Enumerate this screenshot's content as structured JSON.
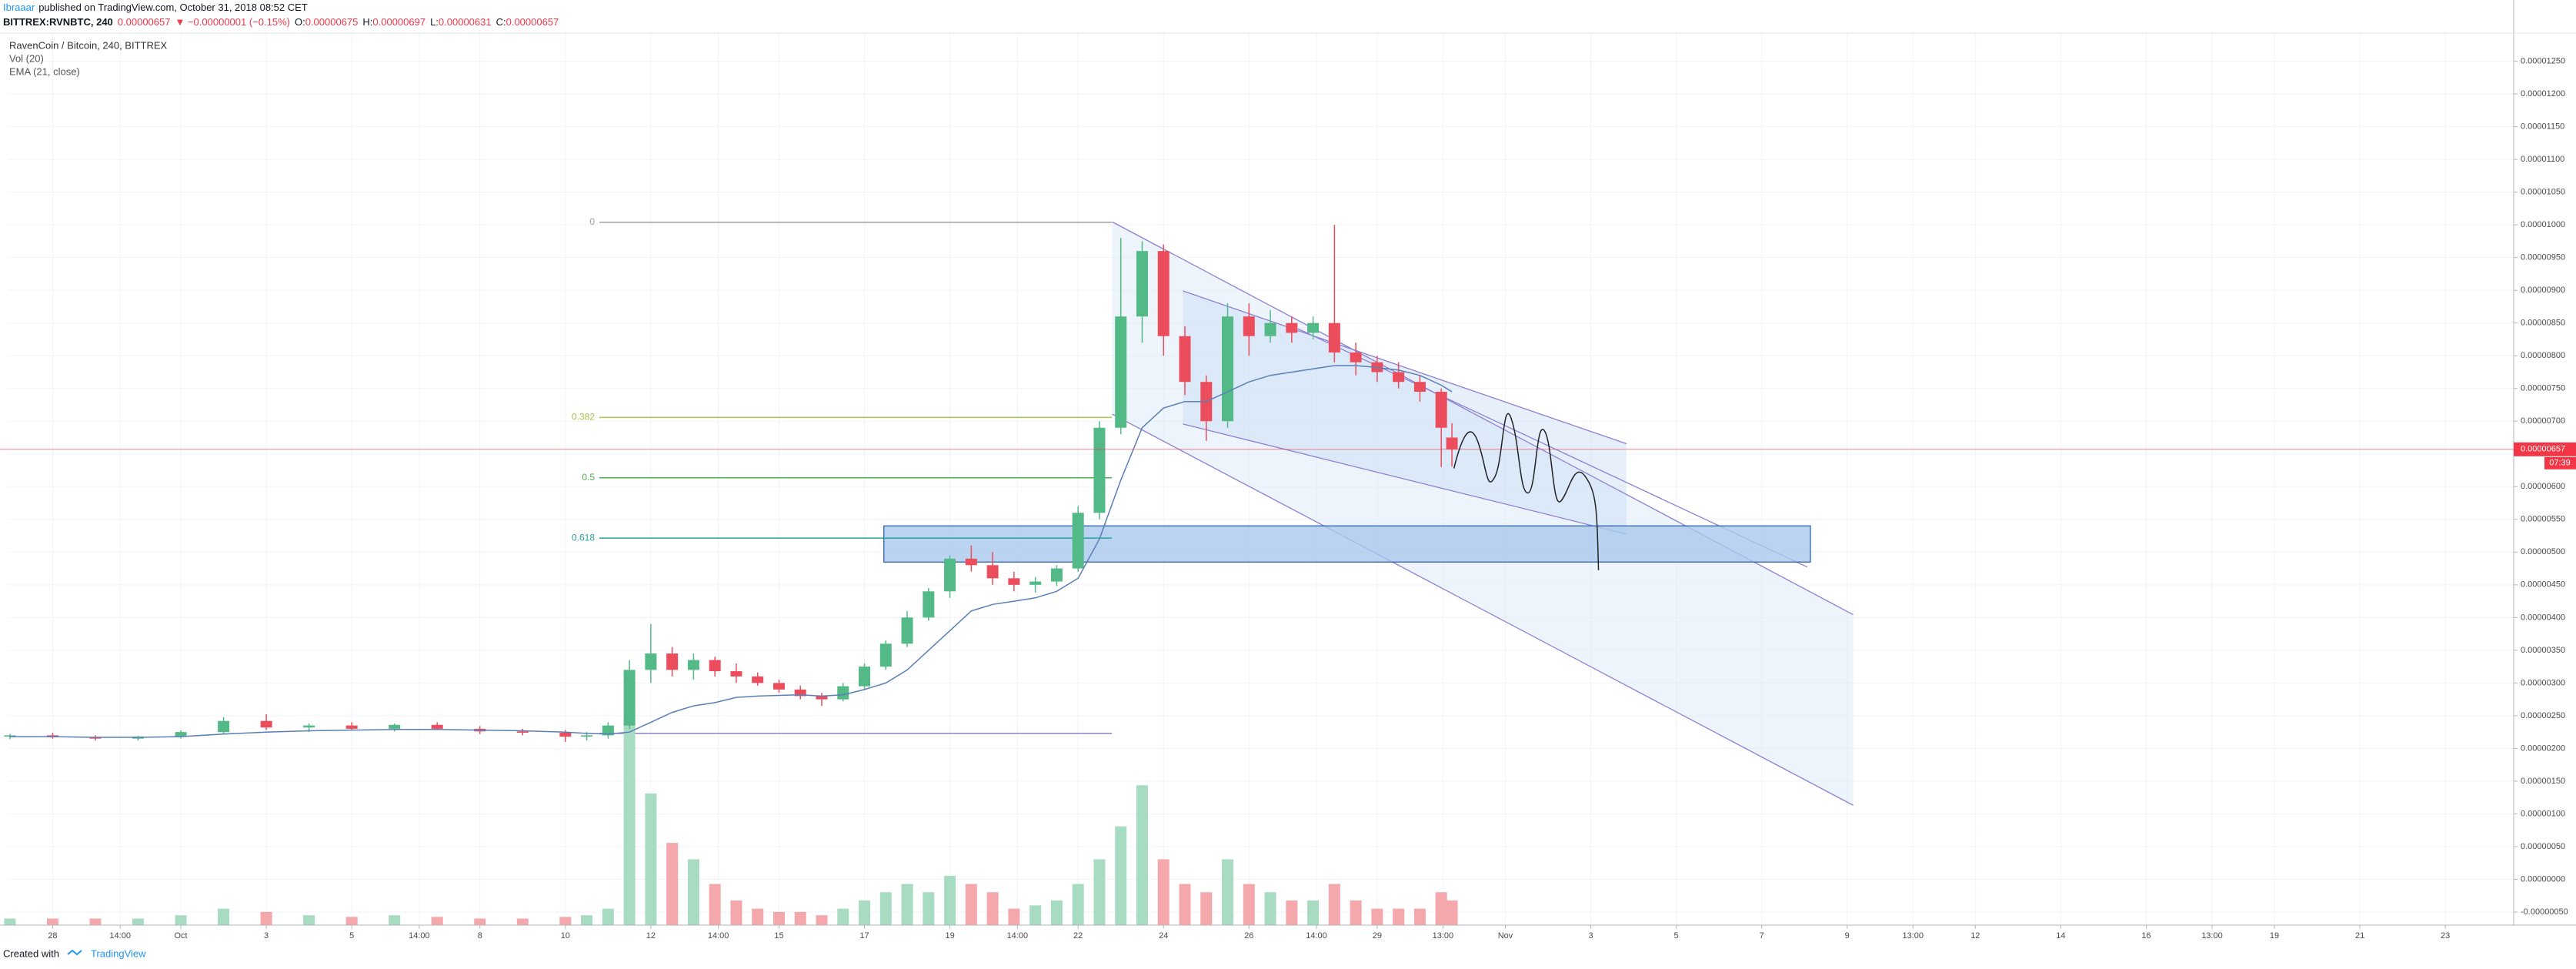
{
  "header": {
    "author": "Ibraaar",
    "published": "published on TradingView.com, October 31, 2018 08:52 CET",
    "symbol": "BITTREX:RVNBTC, 240",
    "price": "0.00000657",
    "change": "▼ −0.00000001 (−0.15%)",
    "ohlc": [
      {
        "key": "O:",
        "value": "0.00000675"
      },
      {
        "key": "H:",
        "value": "0.00000697"
      },
      {
        "key": "L:",
        "value": "0.00000631"
      },
      {
        "key": "C:",
        "value": "0.00000657"
      }
    ]
  },
  "footer": {
    "created": "Created with",
    "brand": "TradingView"
  },
  "chart_data": {
    "type": "candlestick",
    "title": "RavenCoin / Bitcoin, 240, BITTREX",
    "indicators": [
      "Vol (20)",
      "EMA (21, close)"
    ],
    "x": [
      -4,
      -3,
      -2,
      -1,
      0,
      1,
      2,
      3,
      4,
      5,
      6,
      7,
      8,
      9,
      9.5,
      10,
      10.5,
      11,
      11.5,
      12,
      12.5,
      13,
      13.5,
      14,
      14.5,
      15,
      15.5,
      16,
      16.5,
      17,
      17.5,
      18,
      18.5,
      19,
      19.5,
      20,
      20.5,
      21,
      21.5,
      22,
      22.5,
      23,
      23.5,
      24,
      24.5,
      25,
      25.5,
      26,
      26.5,
      27,
      27.5,
      28,
      28.5,
      29,
      29.5,
      29.75
    ],
    "open": [
      2.18e-06,
      2.2e-06,
      2.17e-06,
      2.15e-06,
      2.18e-06,
      2.25e-06,
      2.42e-06,
      2.32e-06,
      2.35e-06,
      2.3e-06,
      2.36e-06,
      2.3e-06,
      2.26e-06,
      2.24e-06,
      2.18e-06,
      2.2e-06,
      2.35e-06,
      3.2e-06,
      3.45e-06,
      3.2e-06,
      3.35e-06,
      3.18e-06,
      3.1e-06,
      3e-06,
      2.9e-06,
      2.8e-06,
      2.75e-06,
      2.95e-06,
      3.25e-06,
      3.6e-06,
      4e-06,
      4.4e-06,
      4.9e-06,
      4.8e-06,
      4.6e-06,
      4.5e-06,
      4.55e-06,
      4.75e-06,
      5.6e-06,
      6.9e-06,
      8.6e-06,
      9.6e-06,
      8.3e-06,
      7.6e-06,
      7e-06,
      8.6e-06,
      8.3e-06,
      8.5e-06,
      8.35e-06,
      8.5e-06,
      8.05e-06,
      7.9e-06,
      7.75e-06,
      7.6e-06,
      7.45e-06,
      6.75e-06
    ],
    "high": [
      2.22e-06,
      2.24e-06,
      2.2e-06,
      2.19e-06,
      2.28e-06,
      2.48e-06,
      2.52e-06,
      2.38e-06,
      2.4e-06,
      2.38e-06,
      2.4e-06,
      2.34e-06,
      2.3e-06,
      2.28e-06,
      2.25e-06,
      2.4e-06,
      3.35e-06,
      3.9e-06,
      3.55e-06,
      3.45e-06,
      3.4e-06,
      3.3e-06,
      3.16e-06,
      3.05e-06,
      2.96e-06,
      2.85e-06,
      3e-06,
      3.3e-06,
      3.65e-06,
      4.1e-06,
      4.45e-06,
      4.95e-06,
      5.1e-06,
      5e-06,
      4.7e-06,
      4.62e-06,
      4.8e-06,
      5.7e-06,
      7e-06,
      9.8e-06,
      9.75e-06,
      9.7e-06,
      8.45e-06,
      7.7e-06,
      8.8e-06,
      8.8e-06,
      8.7e-06,
      8.6e-06,
      8.6e-06,
      1e-05,
      8.2e-06,
      8e-06,
      7.9e-06,
      7.7e-06,
      7.5e-06,
      6.97e-06
    ],
    "low": [
      2.14e-06,
      2.15e-06,
      2.12e-06,
      2.12e-06,
      2.15e-06,
      2.22e-06,
      2.28e-06,
      2.25e-06,
      2.28e-06,
      2.26e-06,
      2.28e-06,
      2.22e-06,
      2.2e-06,
      2.1e-06,
      2.12e-06,
      2.15e-06,
      2.3e-06,
      3e-06,
      3.1e-06,
      3.05e-06,
      3.1e-06,
      3e-06,
      2.96e-06,
      2.85e-06,
      2.75e-06,
      2.65e-06,
      2.72e-06,
      2.9e-06,
      3.2e-06,
      3.55e-06,
      3.95e-06,
      4.3e-06,
      4.7e-06,
      4.5e-06,
      4.4e-06,
      4.38e-06,
      4.48e-06,
      4.7e-06,
      5.5e-06,
      6.8e-06,
      8.2e-06,
      8e-06,
      7.4e-06,
      6.7e-06,
      6.9e-06,
      8e-06,
      8.2e-06,
      8.2e-06,
      8.25e-06,
      7.9e-06,
      7.7e-06,
      7.6e-06,
      7.5e-06,
      7.3e-06,
      6.3e-06,
      6.31e-06
    ],
    "close": [
      2.2e-06,
      2.17e-06,
      2.15e-06,
      2.18e-06,
      2.25e-06,
      2.42e-06,
      2.32e-06,
      2.35e-06,
      2.3e-06,
      2.36e-06,
      2.3e-06,
      2.26e-06,
      2.24e-06,
      2.18e-06,
      2.2e-06,
      2.35e-06,
      3.2e-06,
      3.45e-06,
      3.2e-06,
      3.35e-06,
      3.18e-06,
      3.1e-06,
      3e-06,
      2.9e-06,
      2.8e-06,
      2.75e-06,
      2.95e-06,
      3.25e-06,
      3.6e-06,
      4e-06,
      4.4e-06,
      4.9e-06,
      4.8e-06,
      4.6e-06,
      4.5e-06,
      4.55e-06,
      4.75e-06,
      5.6e-06,
      6.9e-06,
      8.6e-06,
      9.6e-06,
      8.3e-06,
      7.6e-06,
      7e-06,
      8.6e-06,
      8.3e-06,
      8.5e-06,
      8.35e-06,
      8.5e-06,
      8.05e-06,
      7.9e-06,
      7.75e-06,
      7.6e-06,
      7.45e-06,
      6.9e-06,
      6.57e-06
    ],
    "volume": [
      4,
      4,
      4,
      4,
      6,
      10,
      8,
      6,
      5,
      6,
      5,
      4,
      4,
      5,
      6,
      10,
      123,
      80,
      50,
      40,
      25,
      15,
      10,
      8,
      8,
      6,
      10,
      15,
      20,
      25,
      20,
      30,
      25,
      20,
      10,
      12,
      15,
      25,
      40,
      60,
      85,
      40,
      25,
      20,
      40,
      25,
      20,
      15,
      15,
      25,
      15,
      10,
      10,
      10,
      20,
      15
    ],
    "ema": [
      2.18e-06,
      2.18e-06,
      2.17e-06,
      2.17e-06,
      2.18e-06,
      2.22e-06,
      2.25e-06,
      2.27e-06,
      2.28e-06,
      2.29e-06,
      2.29e-06,
      2.28e-06,
      2.27e-06,
      2.25e-06,
      2.23e-06,
      2.22e-06,
      2.25e-06,
      2.4e-06,
      2.55e-06,
      2.65e-06,
      2.7e-06,
      2.78e-06,
      2.8e-06,
      2.81e-06,
      2.82e-06,
      2.8e-06,
      2.82e-06,
      2.9e-06,
      3e-06,
      3.2e-06,
      3.5e-06,
      3.8e-06,
      4.1e-06,
      4.2e-06,
      4.25e-06,
      4.3e-06,
      4.4e-06,
      4.6e-06,
      5.2e-06,
      6.1e-06,
      6.9e-06,
      7.2e-06,
      7.3e-06,
      7.3e-06,
      7.45e-06,
      7.6e-06,
      7.7e-06,
      7.75e-06,
      7.8e-06,
      7.85e-06,
      7.85e-06,
      7.82e-06,
      7.78e-06,
      7.7e-06,
      7.55e-06,
      7.45e-06
    ],
    "colors": {
      "up": "#53b987",
      "down": "#eb4d5c",
      "volume_up": "#a8dcc2",
      "volume_down": "#f4a8ab",
      "ema": "#5a7fb5"
    },
    "xlim": [
      -4.04,
      54.6
    ],
    "ylim": [
      -7e-07,
      1.293e-05
    ],
    "grid": true,
    "xticks": [
      {
        "value": -3,
        "label": "28"
      },
      {
        "value": -1.42,
        "label": "14:00"
      },
      {
        "value": 0,
        "label": "Oct"
      },
      {
        "value": 2,
        "label": "3"
      },
      {
        "value": 4,
        "label": "5"
      },
      {
        "value": 5.58,
        "label": "14:00"
      },
      {
        "value": 7,
        "label": "8"
      },
      {
        "value": 9,
        "label": "10"
      },
      {
        "value": 11,
        "label": "12"
      },
      {
        "value": 12.58,
        "label": "14:00"
      },
      {
        "value": 14,
        "label": "15"
      },
      {
        "value": 16,
        "label": "17"
      },
      {
        "value": 18,
        "label": "19"
      },
      {
        "value": 19.58,
        "label": "14:00"
      },
      {
        "value": 21,
        "label": "22"
      },
      {
        "value": 23,
        "label": "24"
      },
      {
        "value": 25,
        "label": "26"
      },
      {
        "value": 26.58,
        "label": "14:00"
      },
      {
        "value": 28,
        "label": "29"
      },
      {
        "value": 29.54,
        "label": "13:00"
      },
      {
        "value": 31,
        "label": "Nov"
      },
      {
        "value": 33,
        "label": "3"
      },
      {
        "value": 35,
        "label": "5"
      },
      {
        "value": 37,
        "label": "7"
      },
      {
        "value": 39,
        "label": "9"
      },
      {
        "value": 40.54,
        "label": "13:00"
      },
      {
        "value": 42,
        "label": "12"
      },
      {
        "value": 44,
        "label": "14"
      },
      {
        "value": 46,
        "label": "16"
      },
      {
        "value": 47.54,
        "label": "13:00"
      },
      {
        "value": 49,
        "label": "19"
      },
      {
        "value": 51,
        "label": "21"
      },
      {
        "value": 53,
        "label": "23"
      }
    ],
    "yticks": [
      {
        "value": 1.25e-05,
        "label": "0.00001250"
      },
      {
        "value": 1.2e-05,
        "label": "0.00001200"
      },
      {
        "value": 1.15e-05,
        "label": "0.00001150"
      },
      {
        "value": 1.1e-05,
        "label": "0.00001100"
      },
      {
        "value": 1.05e-05,
        "label": "0.00001050"
      },
      {
        "value": 1e-05,
        "label": "0.00001000"
      },
      {
        "value": 9.5e-06,
        "label": "0.00000950"
      },
      {
        "value": 9e-06,
        "label": "0.00000900"
      },
      {
        "value": 8.5e-06,
        "label": "0.00000850"
      },
      {
        "value": 8e-06,
        "label": "0.00000800"
      },
      {
        "value": 7.5e-06,
        "label": "0.00000750"
      },
      {
        "value": 7e-06,
        "label": "0.00000700"
      },
      {
        "value": 6.5e-06,
        "label": "0.00000650"
      },
      {
        "value": 6e-06,
        "label": "0.00000600"
      },
      {
        "value": 5.5e-06,
        "label": "0.00000550"
      },
      {
        "value": 5e-06,
        "label": "0.00000500"
      },
      {
        "value": 4.5e-06,
        "label": "0.00000450"
      },
      {
        "value": 4e-06,
        "label": "0.00000400"
      },
      {
        "value": 3.5e-06,
        "label": "0.00000350"
      },
      {
        "value": 3e-06,
        "label": "0.00000300"
      },
      {
        "value": 2.5e-06,
        "label": "0.00000250"
      },
      {
        "value": 2e-06,
        "label": "0.00000200"
      },
      {
        "value": 1.5e-06,
        "label": "0.00000150"
      },
      {
        "value": 1e-06,
        "label": "0.00000100"
      },
      {
        "value": 5e-07,
        "label": "0.00000050"
      },
      {
        "value": 0,
        "label": "0.00000000"
      },
      {
        "value": -5e-07,
        "label": "-0.00000050"
      }
    ],
    "fib": {
      "high": 1.004e-05,
      "low": 2.23e-06,
      "levels": [
        0,
        0.382,
        0.5,
        0.618
      ],
      "colors": [
        "#9e9e9e",
        "#a8c34a",
        "#4caf50",
        "#26a69a"
      ]
    },
    "last_price": {
      "value": 6.57e-06,
      "label": "0.00000657"
    },
    "countdown": "07:39",
    "last_price_color": "#f23645"
  }
}
